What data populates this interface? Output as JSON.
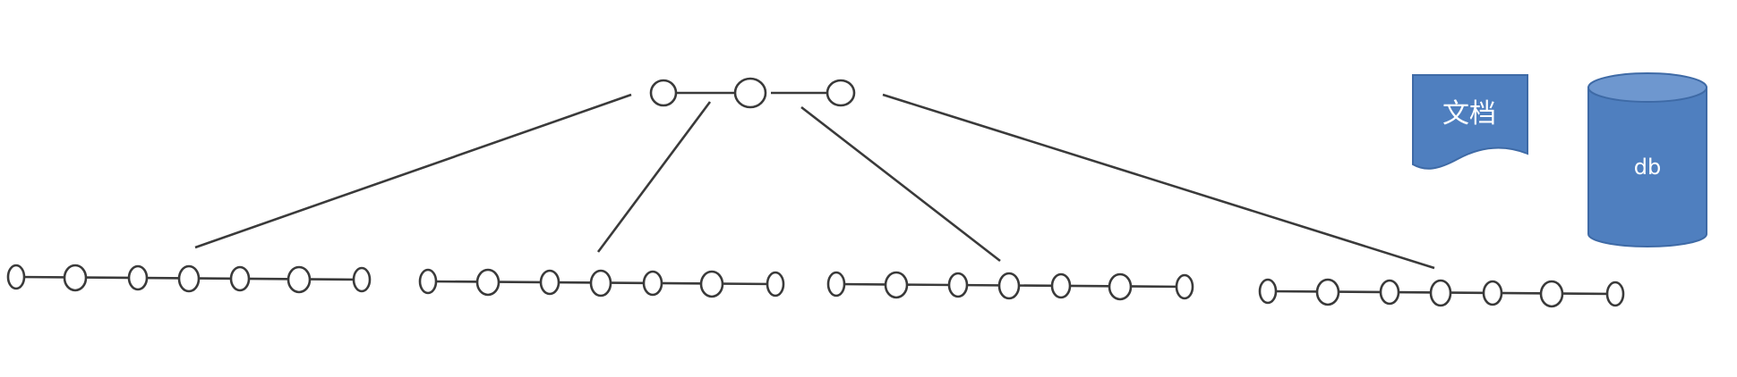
{
  "diagram": {
    "document_label": "文档",
    "database_label": "db",
    "colors": {
      "line": "#3a3a3a",
      "node_fill": "#ffffff",
      "shape_fill": "#4f7fbf",
      "shape_label": "#ffffff"
    }
  }
}
